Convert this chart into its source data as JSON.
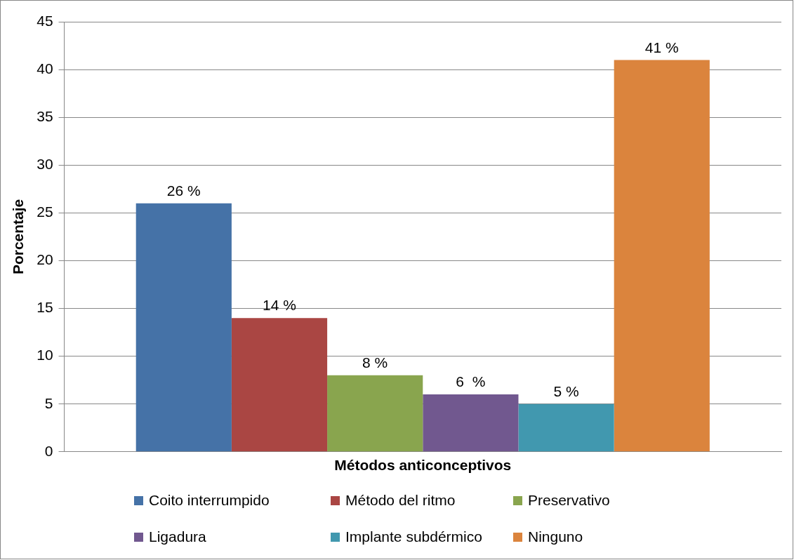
{
  "chart_data": {
    "type": "bar",
    "xlabel": "Métodos anticonceptivos",
    "ylabel": "Porcentaje",
    "categories": [
      null
    ],
    "series": [
      {
        "name": "Coito interrumpido",
        "color": "#4572a7",
        "values": [
          26
        ],
        "value_labels": [
          "26 %"
        ]
      },
      {
        "name": "Método del ritmo",
        "color": "#aa4643",
        "values": [
          14
        ],
        "value_labels": [
          "14 %"
        ]
      },
      {
        "name": "Preservativo",
        "color": "#89a54e",
        "values": [
          8
        ],
        "value_labels": [
          "8 %"
        ]
      },
      {
        "name": "Ligadura",
        "color": "#71588f",
        "values": [
          6
        ],
        "value_labels": [
          "6  %"
        ]
      },
      {
        "name": "Implante subdérmico",
        "color": "#4198af",
        "values": [
          5
        ],
        "value_labels": [
          "5 %"
        ]
      },
      {
        "name": "Ninguno",
        "color": "#db843d",
        "values": [
          41
        ],
        "value_labels": [
          "41 %"
        ]
      }
    ],
    "ylim": [
      0,
      45
    ],
    "yticks": [
      0,
      5,
      10,
      15,
      20,
      25,
      30,
      35,
      40,
      45
    ],
    "grid": "y",
    "legend": "bottom"
  }
}
